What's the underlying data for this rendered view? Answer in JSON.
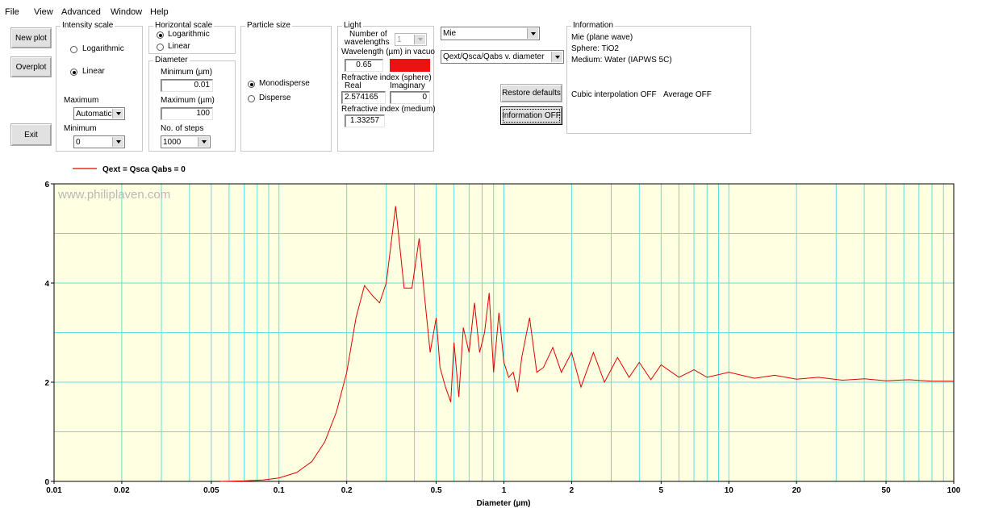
{
  "menu": {
    "file": "File",
    "view": "View",
    "advanced": "Advanced",
    "window": "Window",
    "help": "Help"
  },
  "buttons": {
    "new_plot": "New plot",
    "overplot": "Overplot",
    "exit": "Exit",
    "restore_defaults": "Restore defaults",
    "information_off": "Information OFF"
  },
  "intensity_scale": {
    "title": "Intensity scale",
    "logarithmic": "Logarithmic",
    "linear": "Linear",
    "selected": "Linear",
    "maximum_label": "Maximum",
    "maximum_value": "Automatic",
    "minimum_label": "Minimum",
    "minimum_value": "0"
  },
  "horizontal_scale": {
    "title": "Horizontal scale",
    "logarithmic": "Logarithmic",
    "linear": "Linear",
    "selected": "Logarithmic"
  },
  "diameter": {
    "title": "Diameter",
    "min_label": "Minimum (µm)",
    "min_value": "0.01",
    "max_label": "Maximum (µm)",
    "max_value": "100",
    "steps_label": "No. of steps",
    "steps_value": "1000"
  },
  "particle_size": {
    "title": "Particle size",
    "monodisperse": "Monodisperse",
    "disperse": "Disperse",
    "selected": "Monodisperse"
  },
  "light": {
    "title": "Light",
    "num_wavelengths_label_1": "Number of",
    "num_wavelengths_label_2": "wavelengths",
    "num_wavelengths_value": "1",
    "wavelength_label": "Wavelength (µm) in vacuo",
    "wavelength_value": "0.65",
    "wavelength_color": "#ee1111",
    "ri_sphere_label": "Refractive index (sphere)",
    "real_label": "Real",
    "imag_label": "Imaginary",
    "real_value": "2.574165",
    "imag_value": "0",
    "ri_medium_label": "Refractive index (medium)",
    "ri_medium_value": "1.33257"
  },
  "theory_select": "Mie",
  "plot_select": "Qext/Qsca/Qabs v. diameter",
  "information": {
    "title": "Information",
    "line1": "Mie (plane wave)",
    "line2": "Sphere: TiO2",
    "line3": "Medium: Water (IAPWS 5C)",
    "cubic": "Cubic interpolation OFF",
    "average": "Average OFF"
  },
  "chart_data": {
    "type": "line",
    "legend": "Qext = Qsca   Qabs = 0",
    "watermark": "www.philiplaven.com",
    "xlabel": "Diameter (µm)",
    "x_scale": "log",
    "xlim": [
      0.01,
      100
    ],
    "ylim": [
      0,
      6
    ],
    "x_ticks": [
      0.01,
      0.02,
      0.05,
      0.1,
      0.2,
      0.5,
      1,
      2,
      5,
      10,
      20,
      50,
      100
    ],
    "x_tick_labels": [
      "0.01",
      "0.02",
      "0.05",
      "0.1",
      "0.2",
      "0.5",
      "1",
      "2",
      "5",
      "10",
      "20",
      "50",
      "100"
    ],
    "y_ticks": [
      0,
      2,
      4,
      6
    ],
    "y_tick_labels": [
      "0",
      "2",
      "4",
      "6"
    ],
    "plot_bg": "#ffffe1",
    "grid_color": "#5ee0e0",
    "line_color": "#e00000",
    "series": [
      {
        "x": [
          0.055,
          0.07,
          0.085,
          0.1,
          0.12,
          0.14,
          0.16,
          0.18,
          0.2,
          0.22,
          0.24,
          0.26,
          0.28,
          0.3,
          0.33,
          0.36,
          0.39,
          0.42,
          0.44,
          0.47,
          0.5,
          0.52,
          0.55,
          0.58,
          0.6,
          0.63,
          0.66,
          0.7,
          0.74,
          0.78,
          0.82,
          0.86,
          0.9,
          0.95,
          1.0,
          1.05,
          1.1,
          1.15,
          1.2,
          1.3,
          1.4,
          1.5,
          1.65,
          1.8,
          2.0,
          2.2,
          2.5,
          2.8,
          3.2,
          3.6,
          4.0,
          4.5,
          5.0,
          6.0,
          7.0,
          8.0,
          10,
          13,
          16,
          20,
          25,
          32,
          40,
          50,
          63,
          80,
          100
        ],
        "y": [
          0.0,
          0.01,
          0.03,
          0.07,
          0.18,
          0.4,
          0.8,
          1.4,
          2.2,
          3.3,
          3.95,
          3.75,
          3.6,
          4.0,
          5.55,
          3.9,
          3.9,
          4.9,
          3.9,
          2.6,
          3.3,
          2.3,
          1.9,
          1.6,
          2.8,
          1.7,
          3.1,
          2.6,
          3.6,
          2.6,
          3.0,
          3.8,
          2.2,
          3.4,
          2.4,
          2.1,
          2.2,
          1.8,
          2.5,
          3.3,
          2.2,
          2.3,
          2.7,
          2.2,
          2.6,
          1.9,
          2.6,
          2.0,
          2.5,
          2.1,
          2.4,
          2.05,
          2.35,
          2.1,
          2.25,
          2.1,
          2.2,
          2.08,
          2.14,
          2.06,
          2.1,
          2.04,
          2.07,
          2.03,
          2.05,
          2.02,
          2.02
        ]
      }
    ]
  }
}
